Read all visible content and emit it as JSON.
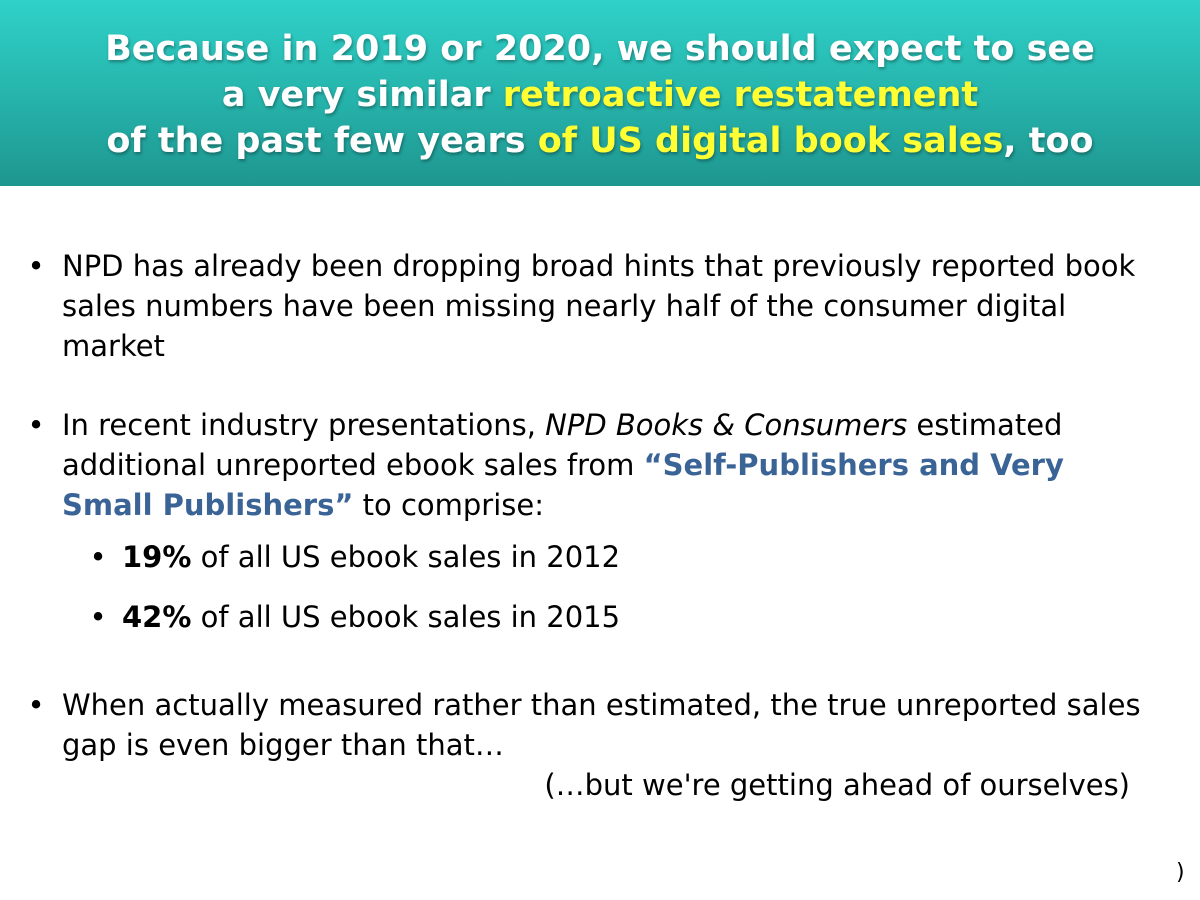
{
  "slide": {
    "title": {
      "line1": "Because in 2019 or 2020, we should expect to see",
      "line2_pre": "a very similar ",
      "line2_hl": "retroactive restatement",
      "line3_pre": "of the past few years ",
      "line3_hl": "of US digital book sales",
      "line3_post": ", too"
    },
    "bullets": [
      {
        "text": "NPD has already been dropping broad hints that previously reported book sales numbers have been missing nearly half of the consumer digital market"
      },
      {
        "pre": "In recent industry presentations, ",
        "italic": "NPD Books & Consumers",
        "mid": " estimated additional unreported ebook sales from ",
        "highlight": "“Self-Publishers and Very Small Publishers”",
        "post": " to comprise:"
      },
      {
        "text": "When actually measured rather than estimated, the true unreported sales gap is even bigger than that…"
      }
    ],
    "sub_bullets": [
      {
        "bold": "19%",
        "text": " of all US ebook sales in 2012"
      },
      {
        "bold": "42%",
        "text": " of all US ebook sales in 2015"
      }
    ],
    "aside": "(…but we're getting ahead of ourselves)",
    "bullet_glyph": "•",
    "corner_mark": ")",
    "colors": {
      "header_top": "#2fd1c8",
      "header_bottom": "#1e968f",
      "title_text": "#ffffff",
      "title_highlight": "#ffff33",
      "emphasis_blue": "#3a6396"
    }
  }
}
